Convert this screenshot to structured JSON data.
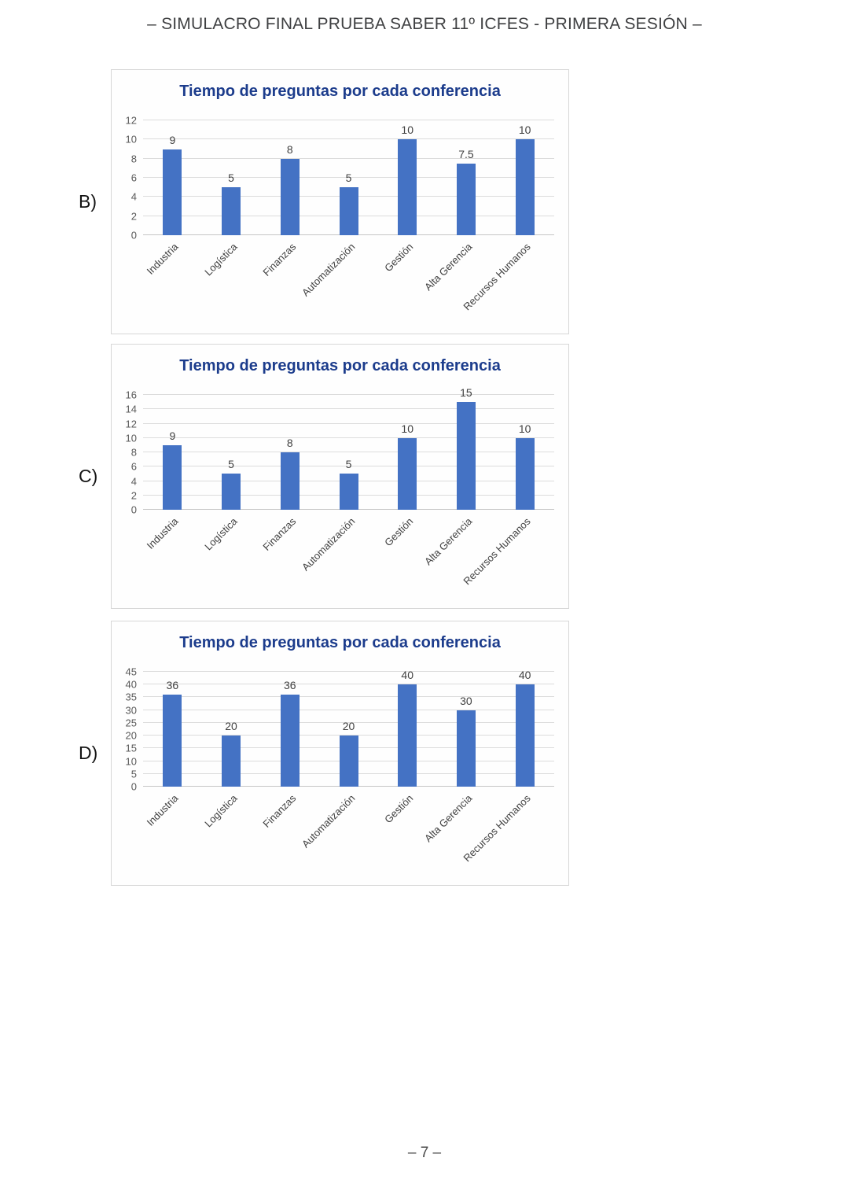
{
  "page": {
    "header_title": "– SIMULACRO FINAL PRUEBA SABER 11º ICFES - PRIMERA SESIÓN –",
    "page_number": "– 7 –"
  },
  "colors": {
    "bar": "#4472C4",
    "chart_title": "#1c3c8c",
    "gridline": "#dcdcdc",
    "axis_text": "#595959",
    "panel_border": "#d7d7d7"
  },
  "chart_data": [
    {
      "type": "bar",
      "option_label": "B)",
      "title": "Tiempo de preguntas por cada conferencia",
      "categories": [
        "Industria",
        "Logística",
        "Finanzas",
        "Automatización",
        "Gestión",
        "Alta Gerencia",
        "Recursos Humanos"
      ],
      "values": [
        9,
        5,
        8,
        5,
        10,
        7.5,
        10
      ],
      "data_labels": [
        "9",
        "5",
        "8",
        "5",
        "10",
        "7.5",
        "10"
      ],
      "xlabel": "",
      "ylabel": "",
      "ylim": [
        0,
        12
      ],
      "yticks": [
        0,
        2,
        4,
        6,
        8,
        10,
        12
      ],
      "grid": true,
      "legend": false
    },
    {
      "type": "bar",
      "option_label": "C)",
      "title": "Tiempo de preguntas por cada conferencia",
      "categories": [
        "Industria",
        "Logística",
        "Finanzas",
        "Automatización",
        "Gestión",
        "Alta Gerencia",
        "Recursos Humanos"
      ],
      "values": [
        9,
        5,
        8,
        5,
        10,
        15,
        10
      ],
      "data_labels": [
        "9",
        "5",
        "8",
        "5",
        "10",
        "15",
        "10"
      ],
      "xlabel": "",
      "ylabel": "",
      "ylim": [
        0,
        16
      ],
      "yticks": [
        0,
        2,
        4,
        6,
        8,
        10,
        12,
        14,
        16
      ],
      "grid": true,
      "legend": false
    },
    {
      "type": "bar",
      "option_label": "D)",
      "title": "Tiempo de preguntas por cada conferencia",
      "categories": [
        "Industria",
        "Logística",
        "Finanzas",
        "Automatización",
        "Gestión",
        "Alta Gerencia",
        "Recursos Humanos"
      ],
      "values": [
        36,
        20,
        36,
        20,
        40,
        30,
        40
      ],
      "data_labels": [
        "36",
        "20",
        "36",
        "20",
        "40",
        "30",
        "40"
      ],
      "xlabel": "",
      "ylabel": "",
      "ylim": [
        0,
        45
      ],
      "yticks": [
        0,
        5,
        10,
        15,
        20,
        25,
        30,
        35,
        40,
        45
      ],
      "grid": true,
      "legend": false
    }
  ]
}
